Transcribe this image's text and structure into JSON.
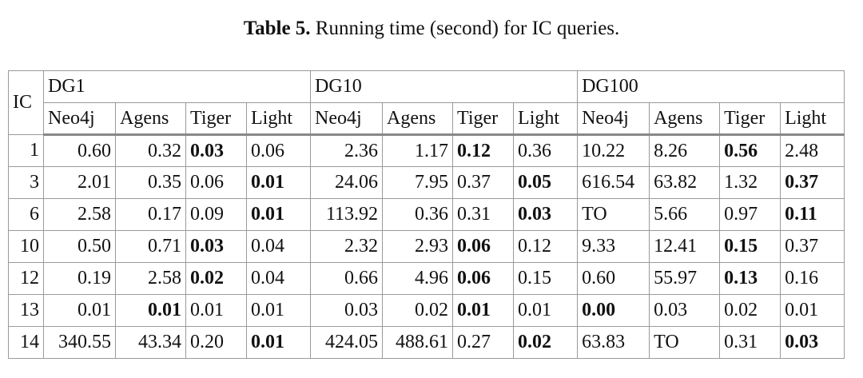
{
  "caption": {
    "label": "Table 5.",
    "text": " Running time (second) for IC queries."
  },
  "header": {
    "ic": "IC",
    "groups": [
      "DG1",
      "DG10",
      "DG100"
    ],
    "systems": [
      "Neo4j",
      "Agens",
      "Tiger",
      "Light"
    ]
  },
  "rows": [
    {
      "ic": "1",
      "cells": [
        {
          "v": "0.60",
          "b": false
        },
        {
          "v": "0.32",
          "b": false
        },
        {
          "v": "0.03",
          "b": true
        },
        {
          "v": "0.06",
          "b": false
        },
        {
          "v": "2.36",
          "b": false
        },
        {
          "v": "1.17",
          "b": false
        },
        {
          "v": "0.12",
          "b": true
        },
        {
          "v": "0.36",
          "b": false
        },
        {
          "v": "10.22",
          "b": false
        },
        {
          "v": "8.26",
          "b": false
        },
        {
          "v": "0.56",
          "b": true
        },
        {
          "v": "2.48",
          "b": false
        }
      ]
    },
    {
      "ic": "3",
      "cells": [
        {
          "v": "2.01",
          "b": false
        },
        {
          "v": "0.35",
          "b": false
        },
        {
          "v": "0.06",
          "b": false
        },
        {
          "v": "0.01",
          "b": true
        },
        {
          "v": "24.06",
          "b": false
        },
        {
          "v": "7.95",
          "b": false
        },
        {
          "v": "0.37",
          "b": false
        },
        {
          "v": "0.05",
          "b": true
        },
        {
          "v": "616.54",
          "b": false
        },
        {
          "v": "63.82",
          "b": false
        },
        {
          "v": "1.32",
          "b": false
        },
        {
          "v": "0.37",
          "b": true
        }
      ]
    },
    {
      "ic": "6",
      "cells": [
        {
          "v": "2.58",
          "b": false
        },
        {
          "v": "0.17",
          "b": false
        },
        {
          "v": "0.09",
          "b": false
        },
        {
          "v": "0.01",
          "b": true
        },
        {
          "v": "113.92",
          "b": false
        },
        {
          "v": "0.36",
          "b": false
        },
        {
          "v": "0.31",
          "b": false
        },
        {
          "v": "0.03",
          "b": true
        },
        {
          "v": "TO",
          "b": false
        },
        {
          "v": "5.66",
          "b": false
        },
        {
          "v": "0.97",
          "b": false
        },
        {
          "v": "0.11",
          "b": true
        }
      ]
    },
    {
      "ic": "10",
      "cells": [
        {
          "v": "0.50",
          "b": false
        },
        {
          "v": "0.71",
          "b": false
        },
        {
          "v": "0.03",
          "b": true
        },
        {
          "v": "0.04",
          "b": false
        },
        {
          "v": "2.32",
          "b": false
        },
        {
          "v": "2.93",
          "b": false
        },
        {
          "v": "0.06",
          "b": true
        },
        {
          "v": "0.12",
          "b": false
        },
        {
          "v": "9.33",
          "b": false
        },
        {
          "v": "12.41",
          "b": false
        },
        {
          "v": "0.15",
          "b": true
        },
        {
          "v": "0.37",
          "b": false
        }
      ]
    },
    {
      "ic": "12",
      "cells": [
        {
          "v": "0.19",
          "b": false
        },
        {
          "v": "2.58",
          "b": false
        },
        {
          "v": "0.02",
          "b": true
        },
        {
          "v": "0.04",
          "b": false
        },
        {
          "v": "0.66",
          "b": false
        },
        {
          "v": "4.96",
          "b": false
        },
        {
          "v": "0.06",
          "b": true
        },
        {
          "v": "0.15",
          "b": false
        },
        {
          "v": "0.60",
          "b": false
        },
        {
          "v": "55.97",
          "b": false
        },
        {
          "v": "0.13",
          "b": true
        },
        {
          "v": "0.16",
          "b": false
        }
      ]
    },
    {
      "ic": "13",
      "cells": [
        {
          "v": "0.01",
          "b": false
        },
        {
          "v": "0.01",
          "b": true
        },
        {
          "v": "0.01",
          "b": false
        },
        {
          "v": "0.01",
          "b": false
        },
        {
          "v": "0.03",
          "b": false
        },
        {
          "v": "0.02",
          "b": false
        },
        {
          "v": "0.01",
          "b": true
        },
        {
          "v": "0.01",
          "b": false
        },
        {
          "v": "0.00",
          "b": true
        },
        {
          "v": "0.03",
          "b": false
        },
        {
          "v": "0.02",
          "b": false
        },
        {
          "v": "0.01",
          "b": false
        }
      ]
    },
    {
      "ic": "14",
      "cells": [
        {
          "v": "340.55",
          "b": false
        },
        {
          "v": "43.34",
          "b": false
        },
        {
          "v": "0.20",
          "b": false
        },
        {
          "v": "0.01",
          "b": true
        },
        {
          "v": "424.05",
          "b": false
        },
        {
          "v": "488.61",
          "b": false
        },
        {
          "v": "0.27",
          "b": false
        },
        {
          "v": "0.02",
          "b": true
        },
        {
          "v": "63.83",
          "b": false
        },
        {
          "v": "TO",
          "b": false
        },
        {
          "v": "0.31",
          "b": false
        },
        {
          "v": "0.03",
          "b": true
        }
      ]
    }
  ]
}
